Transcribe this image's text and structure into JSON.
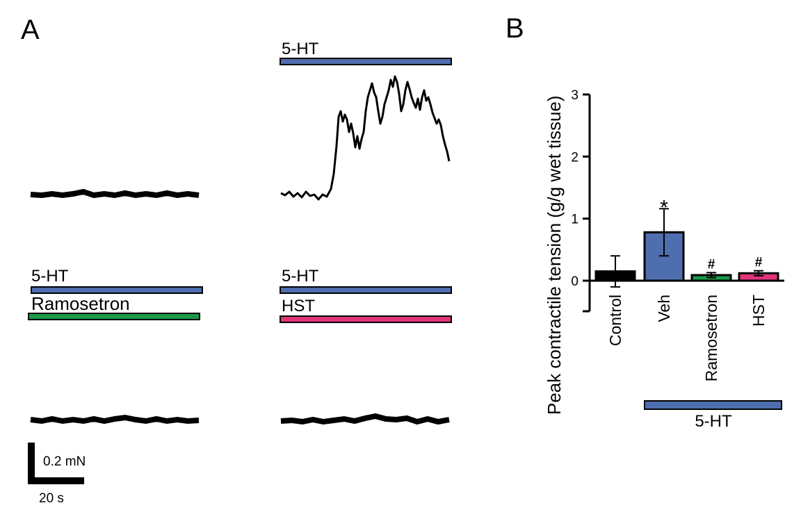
{
  "panel_a": {
    "label": "A",
    "bar_labels": {
      "top_right": "5-HT",
      "mid_left": "5-HT",
      "ramosetron": "Ramosetron",
      "mid_right": "5-HT",
      "hst": "HST"
    },
    "scale_bar": {
      "y_label": "0.2 mN",
      "x_label": "20 s"
    }
  },
  "panel_b": {
    "label": "B",
    "bottom_bar_label": "5-HT"
  },
  "colors": {
    "5-HT": "#4f6eaf",
    "Ramosetron": "#1a9a4a",
    "HST": "#e0357a",
    "Control": "#000000"
  },
  "chart_data": {
    "type": "bar",
    "title": "",
    "xlabel": "",
    "ylabel": "Peak contractile tension (g/g wet tissue)",
    "ylim": [
      0,
      3
    ],
    "yticks": [
      "0",
      "1",
      "2",
      "3"
    ],
    "categories": [
      "Control",
      "Veh",
      "Ramosetron",
      "HST"
    ],
    "values": [
      0.15,
      0.78,
      0.09,
      0.12
    ],
    "errors": [
      0.25,
      0.38,
      0.04,
      0.04
    ],
    "annotations": [
      "",
      "*",
      "#",
      "#"
    ],
    "bar_colors": [
      "#000000",
      "#4f6eaf",
      "#1a9a4a",
      "#e0357a"
    ],
    "grid": false
  }
}
